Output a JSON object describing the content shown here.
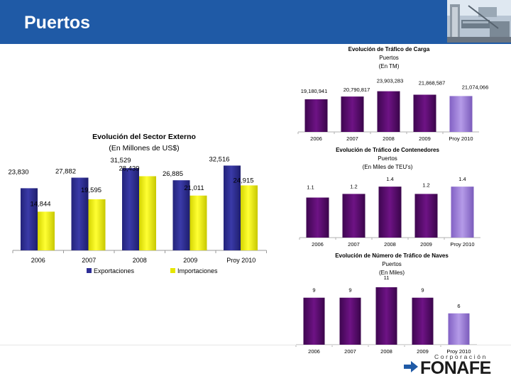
{
  "header": {
    "title": "Puertos"
  },
  "colors": {
    "header_bg": "#1f5aa6",
    "export_bar": "#2e2e96",
    "import_bar": "#e6e600",
    "purple_bar": "#5a0a6a",
    "projection_bar": "#9a7ad6"
  },
  "logo": {
    "small": "Corporación",
    "big": "FONAFE"
  },
  "chart_data": [
    {
      "type": "bar",
      "title": "Evolución del Sector Externo",
      "subtitle": "(En Millones de US$)",
      "categories": [
        "2006",
        "2007",
        "2008",
        "2009",
        "Proy 2010"
      ],
      "series": [
        {
          "name": "Exportaciones",
          "values": [
            23830,
            27882,
            31529,
            26885,
            32516
          ],
          "labels": [
            "23,830",
            "27,882",
            "31,529",
            "26,885",
            "32,516"
          ],
          "color": "#2e2e96"
        },
        {
          "name": "Importaciones",
          "values": [
            14844,
            19595,
            28439,
            21011,
            24915
          ],
          "labels": [
            "14,844",
            "19,595",
            "28,439",
            "21,011",
            "24,915"
          ],
          "color": "#e6e600"
        }
      ],
      "ylim": [
        0,
        34000
      ],
      "legend": "bottom"
    },
    {
      "type": "bar",
      "title": "Evolución de Tráfico de Carga",
      "subtitle": "Puertos",
      "subtitle2": "(En TM)",
      "categories": [
        "2006",
        "2007",
        "2008",
        "2009",
        "Proy 2010"
      ],
      "values": [
        19180941,
        20790817,
        23903283,
        21868587,
        21074066
      ],
      "labels": [
        "19,180,941",
        "20,790,817",
        "23,903,283",
        "21,868,587",
        "21,074,066"
      ],
      "ylim": [
        0,
        25000000
      ]
    },
    {
      "type": "bar",
      "title": "Evolución de Tráfico de Contenedores",
      "subtitle": "Puertos",
      "subtitle2": "(En Miles de TEU's)",
      "categories": [
        "2006",
        "2007",
        "2008",
        "2009",
        "Proy 2010"
      ],
      "values": [
        1.1,
        1.2,
        1.4,
        1.2,
        1.4
      ],
      "labels": [
        "1.1",
        "1.2",
        "1.4",
        "1.2",
        "1.4"
      ],
      "ylim": [
        0,
        1.5
      ]
    },
    {
      "type": "bar",
      "title": "Evolución de Número de Tráfico de Naves",
      "subtitle": "Puertos",
      "subtitle2": "(En Miles)",
      "categories": [
        "2006",
        "2007",
        "2008",
        "2009",
        "Proy 2010"
      ],
      "values": [
        9,
        9,
        11,
        9,
        6
      ],
      "labels": [
        "9",
        "9",
        "11",
        "9",
        "6"
      ],
      "ylim": [
        0,
        11
      ]
    }
  ]
}
